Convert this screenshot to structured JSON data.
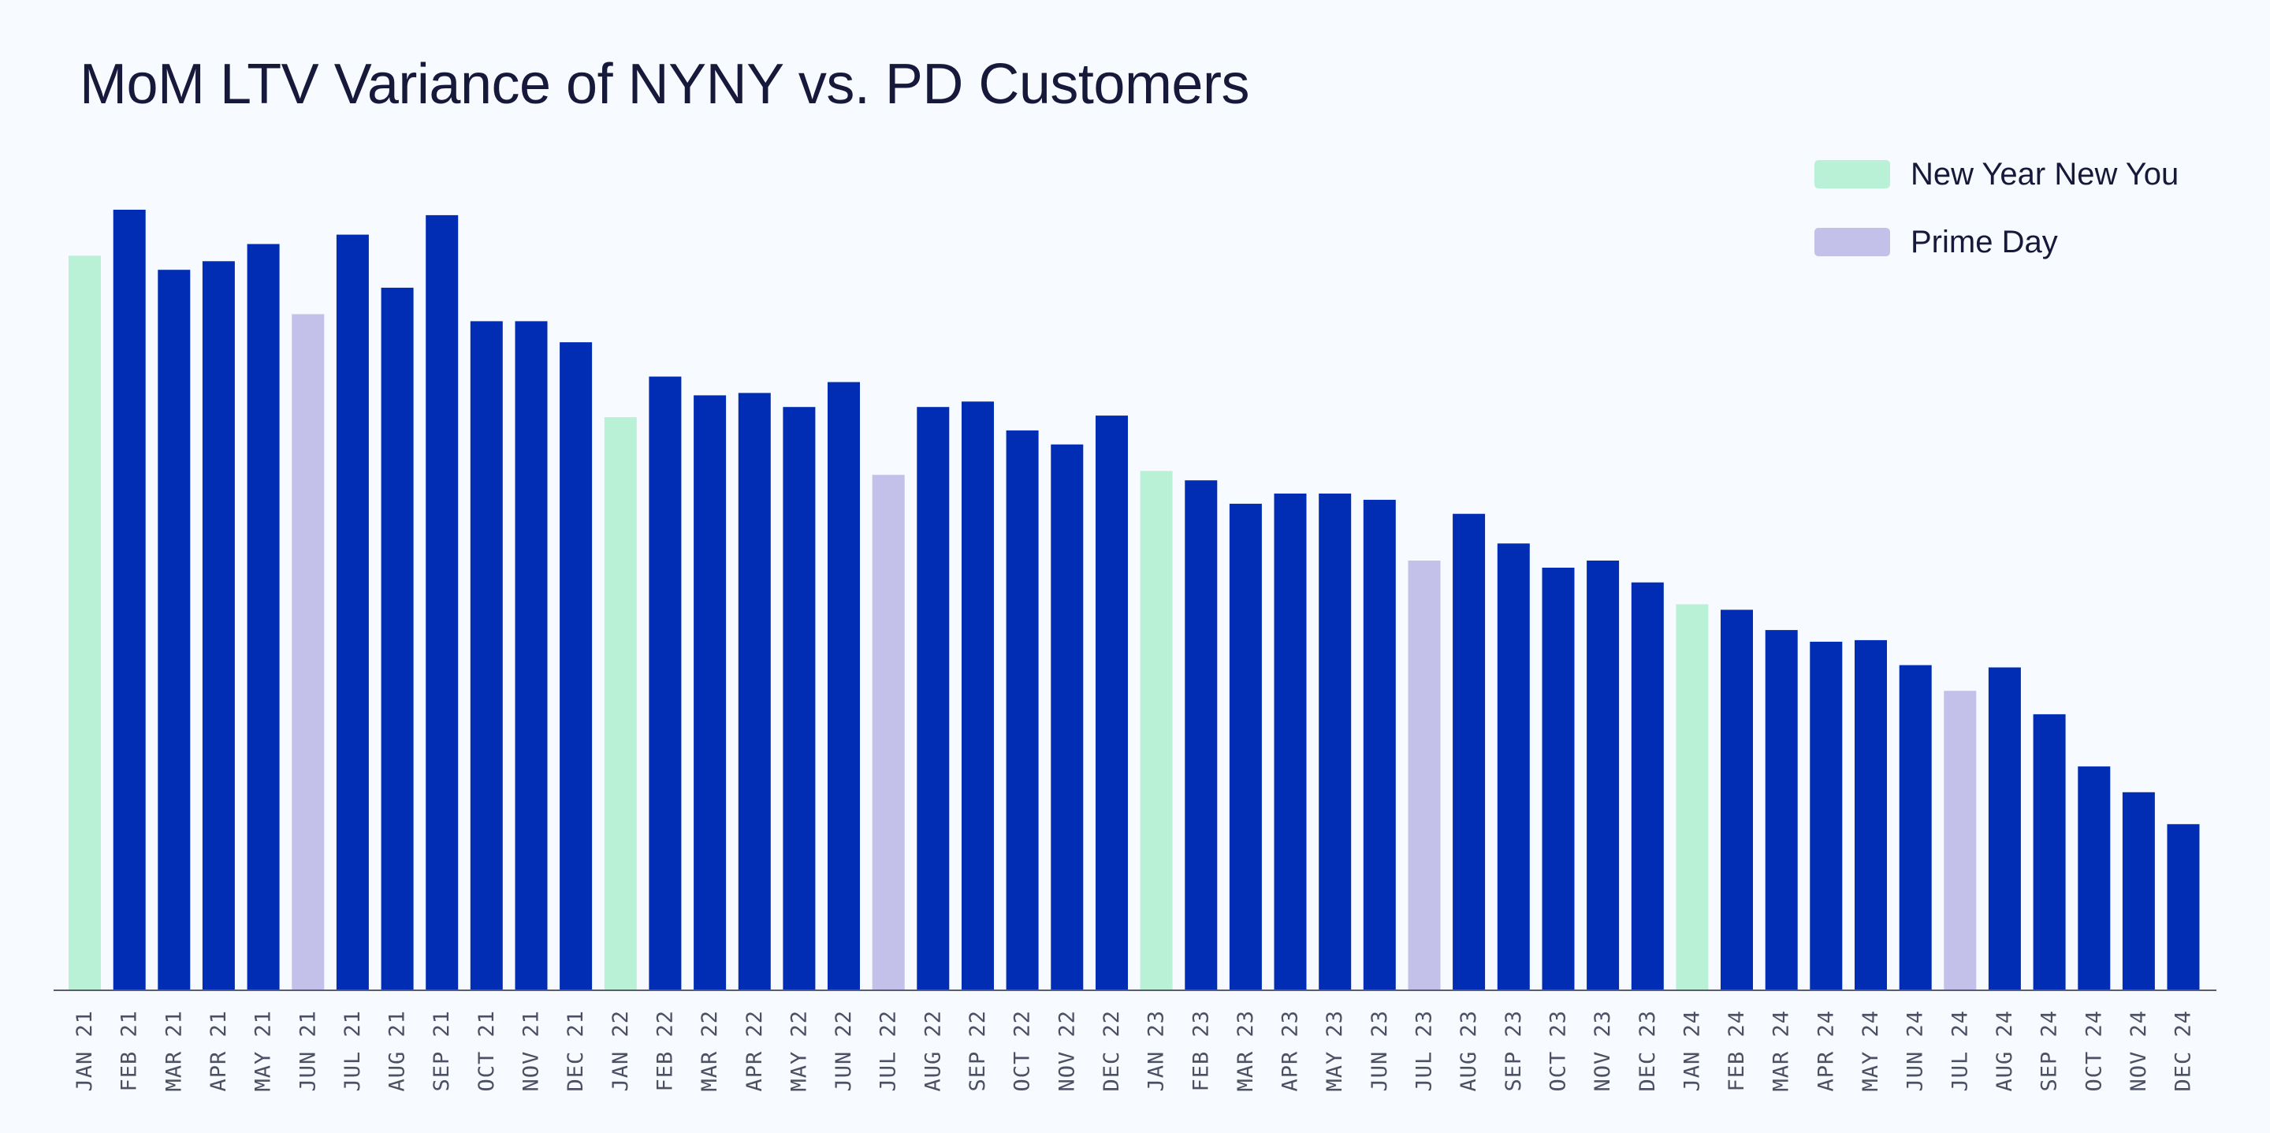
{
  "chart_data": {
    "type": "bar",
    "title": "MoM LTV Variance of NYNY vs. PD Customers",
    "xlabel": "",
    "ylabel": "",
    "ylim": [
      0,
      100
    ],
    "grid": false,
    "legend_position": "top-right",
    "colors": {
      "regular": "#002db3",
      "new_year_new_you": "#b9f1d6",
      "prime_day": "#c3c1e9",
      "axis": "#5a5c70"
    },
    "legend": [
      {
        "label": "New Year New You",
        "color": "#b9f1d6"
      },
      {
        "label": "Prime Day",
        "color": "#c3c1e9"
      }
    ],
    "categories": [
      "JAN 21",
      "FEB 21",
      "MAR 21",
      "APR 21",
      "MAY 21",
      "JUN 21",
      "JUL 21",
      "AUG 21",
      "SEP 21",
      "OCT 21",
      "NOV 21",
      "DEC 21",
      "JAN 22",
      "FEB 22",
      "MAR 22",
      "APR 22",
      "MAY 22",
      "JUN 22",
      "JUL 22",
      "AUG 22",
      "SEP 22",
      "OCT 22",
      "NOV 22",
      "DEC 22",
      "JAN 23",
      "FEB 23",
      "MAR 23",
      "APR 23",
      "MAY 23",
      "JUN 23",
      "JUL 23",
      "AUG 23",
      "SEP 23",
      "OCT 23",
      "NOV 23",
      "DEC 23",
      "JAN 24",
      "FEB 24",
      "MAR 24",
      "APR 24",
      "MAY 24",
      "JUN 24",
      "JUL 24",
      "AUG 24",
      "SEP 24",
      "OCT 24",
      "NOV 24",
      "DEC 24"
    ],
    "values": [
      94.1,
      100.0,
      92.3,
      93.4,
      95.6,
      86.6,
      96.8,
      90.0,
      99.3,
      85.7,
      85.7,
      83.0,
      73.4,
      78.6,
      76.2,
      76.5,
      74.7,
      77.9,
      66.0,
      74.7,
      75.4,
      71.7,
      69.9,
      73.6,
      66.5,
      65.3,
      62.3,
      63.6,
      63.6,
      62.8,
      55.0,
      61.0,
      57.2,
      54.1,
      55.0,
      52.2,
      49.4,
      48.7,
      46.1,
      44.6,
      44.8,
      41.6,
      38.3,
      41.3,
      35.3,
      28.6,
      25.3,
      21.2
    ],
    "highlight": [
      "nyny",
      "regular",
      "regular",
      "regular",
      "regular",
      "pd",
      "regular",
      "regular",
      "regular",
      "regular",
      "regular",
      "regular",
      "nyny",
      "regular",
      "regular",
      "regular",
      "regular",
      "regular",
      "pd",
      "regular",
      "regular",
      "regular",
      "regular",
      "regular",
      "nyny",
      "regular",
      "regular",
      "regular",
      "regular",
      "regular",
      "pd",
      "regular",
      "regular",
      "regular",
      "regular",
      "regular",
      "nyny",
      "regular",
      "regular",
      "regular",
      "regular",
      "regular",
      "pd",
      "regular",
      "regular",
      "regular",
      "regular",
      "regular"
    ]
  }
}
